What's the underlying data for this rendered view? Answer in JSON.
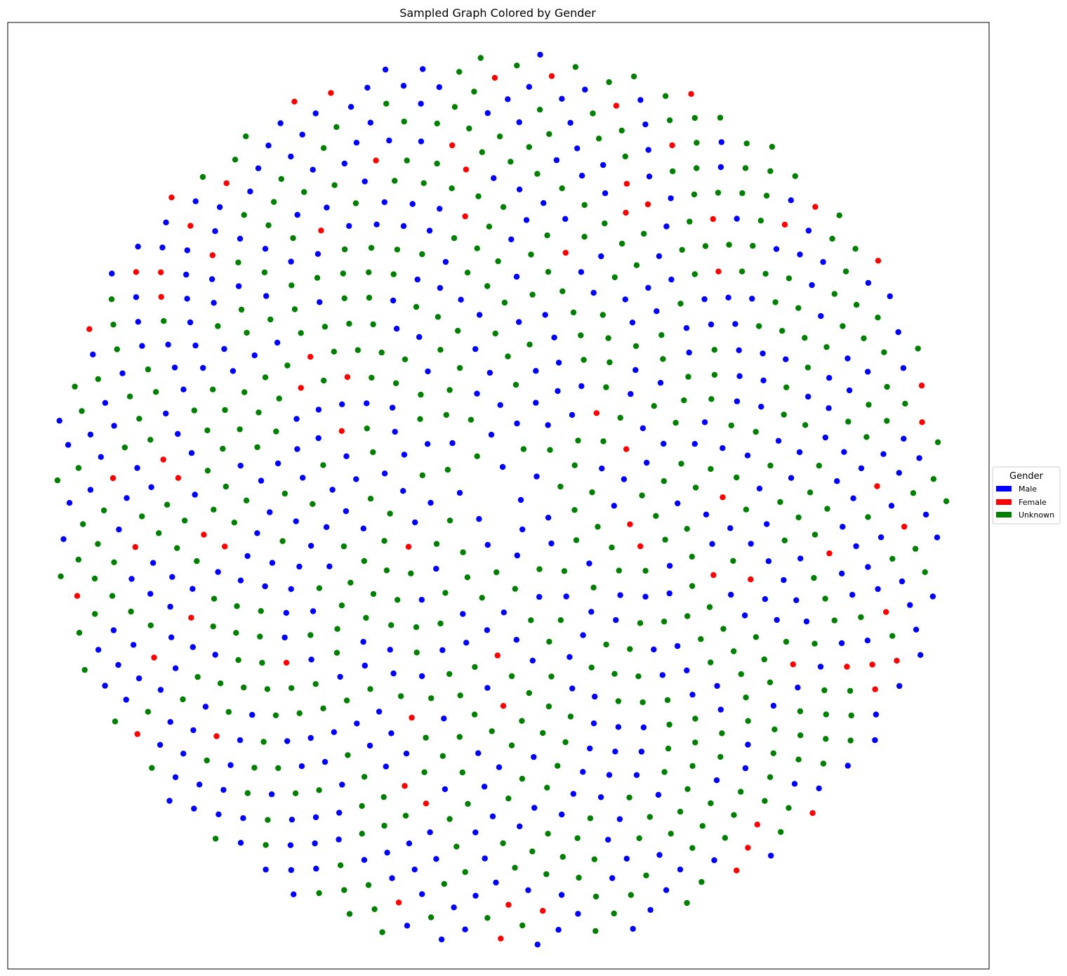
{
  "chart_data": {
    "type": "scatter",
    "title": "Sampled Graph Colored by Gender",
    "xlabel": "",
    "ylabel": "",
    "axes_visible": false,
    "grid": false,
    "legend": {
      "title": "Gender",
      "placement": "outside-right-center",
      "entries": [
        {
          "label": "Male",
          "color": "#0000ff"
        },
        {
          "label": "Female",
          "color": "#ff0000"
        },
        {
          "label": "Unknown",
          "color": "#008000"
        }
      ]
    },
    "layout": "sunflower-spiral",
    "node_count": 1000,
    "node_gender_sequence": "BBBBBBBGBGGBGGGBBBGGBGGBGGGGGGBBGBGBBGBGGGGRBBBBGBBGBBGBGGBBGBGGGBGBBBBGGRBGRGBGGRGGGBBBBGGGBBGBBRGBGGBGBBBGRGGGGBBBBGGGGBBGGGBBBGGGGBBRBGGBBGGGBGBGGGGBBBGGBGBBGGBBGGGBGBGBGBBGGRGBGGBBGBGGGBBBBBGBGRGBGGGBGGGGBGGGGBGBGGGGBBGBBBGBGGBGGRGBGBGBBRBBGRBGGBBGGGBGGGGGRBGBBGRGBGBBBGGGBBBGGBBGBBGGGBGGGGGGBBGGGBGGBGBBGBBRBGBBGGBBBGBGBGBGGGRGBBGGBGGGGBBBRGBGBBGBBGGBGGGBGBGGBGGBGBBBGRBGGGGBGGBGGBGGBBBBRBGBBGGGBBGBBBGBBGGBGGGGBBGBGGBBGGBGRGGGGGBGGBRBBGGBGBBGBBBGBBGGBGGGBGGGBBGGBGBGRBBGRBBGBGGGRBBGGGGGBGBGBBBGGBBGRBGRGBBGBBBGGGGBGGBGGBGGGBRRGGBBRGGGBGRGBBBGGGRBGGBBGGGRGBBGBRBBBGGBGGGBBGBGBGGBGBBGBBGGBBGGBBGBGBBBGBBRGGBBGBGGBGGBBBBGGRGGGBGBBBGGGGRBBGGBBGGBBGBGBBGGBBBBGRBGBGRGGGBBBBGGGBGBGGBBGGBGGGGBBBGBGGRRBBGGBBBGRBBGGBGGBGBGBBBGGGBBRGGGBBGBGRBGGBBGBBBBGGGGBBBGGGBGBGBBRBRGGGGGRBBGBGGBGGBGGBBBBBBGBBBBRBBGBGBBGGGRBRBBGBGGGRBGGRBBGBBBBBBGRBGGBGGGGRRGBBRBGRBGBGGBGGBGGBGRGBBBGGGBRGBBBBBRGGGGBBBBBGBBBGGGGBBBRRGBGBRBGGRRBGBBRBGGRGGBBGBBRGBBGBGGBGBBBBGBGRBBBBGRGBGGRGBGRBGGGBGGGRGGBGBGGGRGBBBGGBRGBBBBRGRBGRBBBBGBBGGBRGRBGBBRBGBGRBGRBGBBRBBBBGBRRBBGGGGBBRBBRRBGBGGBBGBB"
  }
}
